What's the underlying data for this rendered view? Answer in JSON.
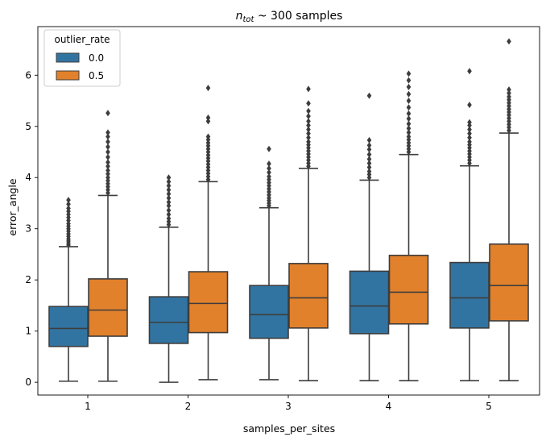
{
  "chart_data": {
    "type": "boxplot",
    "title_main": "n",
    "title_sub": "tot",
    "title_rest": " ~ 300 samples",
    "xlabel": "samples_per_sites",
    "ylabel": "error_angle",
    "categories": [
      "1",
      "2",
      "3",
      "4",
      "5"
    ],
    "ylim": [
      -0.25,
      6.95
    ],
    "yticks": [
      0,
      1,
      2,
      3,
      4,
      5,
      6
    ],
    "legend": {
      "title": "outlier_rate",
      "placement": "top-left"
    },
    "series": [
      {
        "name": "0.0",
        "color": "#3274a1",
        "boxes": [
          {
            "category": "1",
            "min": 0.02,
            "q1": 0.7,
            "median": 1.05,
            "q3": 1.48,
            "max": 2.65,
            "outliers": [
              2.68,
              2.72,
              2.76,
              2.8,
              2.85,
              2.9,
              2.95,
              3.0,
              3.05,
              3.1,
              3.16,
              3.22,
              3.28,
              3.34,
              3.4,
              3.48,
              3.56
            ]
          },
          {
            "category": "2",
            "min": 0.0,
            "q1": 0.76,
            "median": 1.17,
            "q3": 1.67,
            "max": 3.03,
            "outliers": [
              3.08,
              3.14,
              3.2,
              3.28,
              3.36,
              3.45,
              3.52,
              3.6,
              3.68,
              3.76,
              3.84,
              3.92,
              4.0
            ]
          },
          {
            "category": "3",
            "min": 0.05,
            "q1": 0.86,
            "median": 1.32,
            "q3": 1.89,
            "max": 3.41,
            "outliers": [
              3.45,
              3.5,
              3.55,
              3.6,
              3.66,
              3.72,
              3.78,
              3.84,
              3.9,
              3.96,
              4.02,
              4.1,
              4.18,
              4.27,
              4.56
            ]
          },
          {
            "category": "4",
            "min": 0.03,
            "q1": 0.95,
            "median": 1.49,
            "q3": 2.17,
            "max": 3.95,
            "outliers": [
              4.0,
              4.06,
              4.12,
              4.2,
              4.28,
              4.36,
              4.45,
              4.55,
              4.63,
              4.73,
              5.6
            ]
          },
          {
            "category": "5",
            "min": 0.03,
            "q1": 1.06,
            "median": 1.65,
            "q3": 2.34,
            "max": 4.23,
            "outliers": [
              4.28,
              4.34,
              4.4,
              4.46,
              4.52,
              4.58,
              4.64,
              4.7,
              4.78,
              4.86,
              4.94,
              5.02,
              5.08,
              5.42,
              6.08
            ]
          }
        ]
      },
      {
        "name": "0.5",
        "color": "#e1812c",
        "boxes": [
          {
            "category": "1",
            "min": 0.02,
            "q1": 0.9,
            "median": 1.41,
            "q3": 2.02,
            "max": 3.65,
            "outliers": [
              3.7,
              3.76,
              3.82,
              3.88,
              3.94,
              4.0,
              4.07,
              4.14,
              4.22,
              4.3,
              4.4,
              4.5,
              4.6,
              4.7,
              4.8,
              4.88,
              5.26
            ]
          },
          {
            "category": "2",
            "min": 0.05,
            "q1": 0.97,
            "median": 1.54,
            "q3": 2.16,
            "max": 3.92,
            "outliers": [
              3.96,
              4.02,
              4.08,
              4.14,
              4.2,
              4.26,
              4.32,
              4.38,
              4.44,
              4.5,
              4.56,
              4.62,
              4.68,
              4.74,
              4.8,
              5.1,
              5.17,
              5.75
            ]
          },
          {
            "category": "3",
            "min": 0.03,
            "q1": 1.06,
            "median": 1.65,
            "q3": 2.32,
            "max": 4.18,
            "outliers": [
              4.22,
              4.28,
              4.34,
              4.4,
              4.46,
              4.52,
              4.58,
              4.64,
              4.7,
              4.78,
              4.86,
              4.94,
              5.02,
              5.1,
              5.2,
              5.3,
              5.45,
              5.73
            ]
          },
          {
            "category": "4",
            "min": 0.03,
            "q1": 1.14,
            "median": 1.76,
            "q3": 2.48,
            "max": 4.45,
            "outliers": [
              4.5,
              4.56,
              4.62,
              4.68,
              4.74,
              4.8,
              4.88,
              4.96,
              5.05,
              5.15,
              5.25,
              5.37,
              5.5,
              5.63,
              5.77,
              5.9,
              6.03
            ]
          },
          {
            "category": "5",
            "min": 0.03,
            "q1": 1.2,
            "median": 1.89,
            "q3": 2.7,
            "max": 4.87,
            "outliers": [
              4.92,
              4.98,
              5.04,
              5.1,
              5.16,
              5.22,
              5.28,
              5.34,
              5.4,
              5.46,
              5.52,
              5.58,
              5.65,
              5.72,
              6.66
            ]
          }
        ]
      }
    ],
    "axis_color": "#000000",
    "line_color": "#3d3d3d"
  }
}
